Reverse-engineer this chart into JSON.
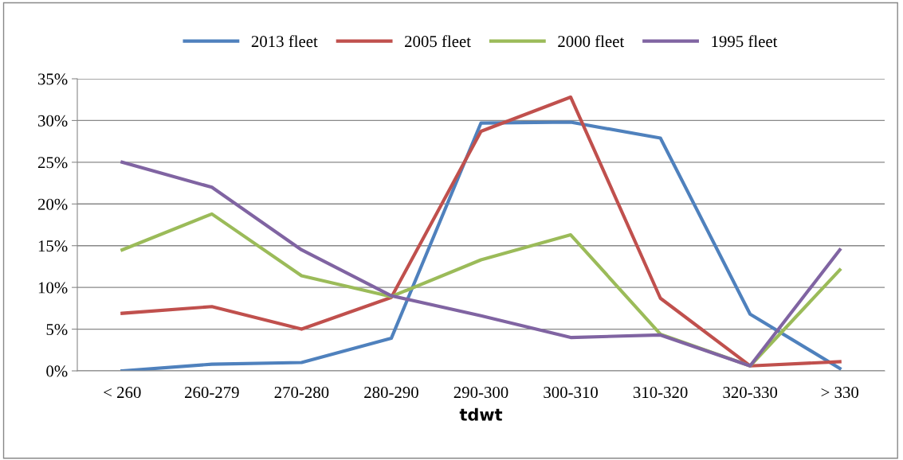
{
  "chart_data": {
    "type": "line",
    "xlabel": "tdwt",
    "categories": [
      "< 260",
      "260-279",
      "270-280",
      "280-290",
      "290-300",
      "300-310",
      "310-320",
      "320-330",
      "> 330"
    ],
    "series": [
      {
        "name": "2013 fleet",
        "color": "#4f81bd",
        "values": [
          0,
          0.8,
          1.0,
          3.9,
          29.7,
          29.8,
          27.9,
          6.8,
          0.3
        ]
      },
      {
        "name": "2005 fleet",
        "color": "#c0504d",
        "values": [
          6.9,
          7.7,
          5.0,
          8.8,
          28.7,
          32.8,
          8.7,
          0.6,
          1.1
        ]
      },
      {
        "name": "2000 fleet",
        "color": "#9bbb59",
        "values": [
          14.5,
          18.8,
          11.4,
          8.9,
          13.3,
          16.3,
          4.4,
          0.6,
          12.1
        ]
      },
      {
        "name": "1995 fleet",
        "color": "#8064a2",
        "values": [
          25.0,
          22.0,
          14.5,
          9.0,
          6.6,
          4.0,
          4.3,
          0.6,
          14.5
        ]
      }
    ],
    "ylim": [
      0,
      35
    ],
    "yticks": [
      {
        "value": 0,
        "label": "0%"
      },
      {
        "value": 5,
        "label": "5%"
      },
      {
        "value": 10,
        "label": "10%"
      },
      {
        "value": 15,
        "label": "15%"
      },
      {
        "value": 20,
        "label": "20%"
      },
      {
        "value": 25,
        "label": "25%"
      },
      {
        "value": 30,
        "label": "30%"
      },
      {
        "value": 35,
        "label": "35%"
      }
    ],
    "grid": "y",
    "legend": "top",
    "marker": "none",
    "line_style": "solid"
  }
}
